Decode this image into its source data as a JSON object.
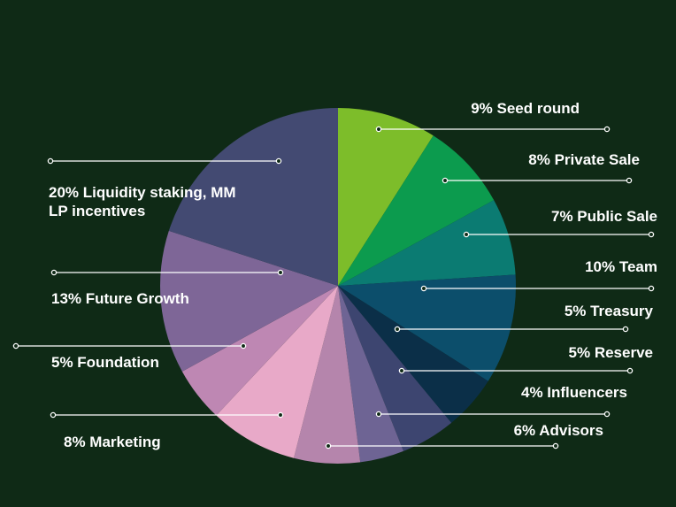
{
  "chart_data": {
    "type": "pie",
    "slices": [
      {
        "label": "9% Seed round",
        "value": 9,
        "color": "#7dbd2a"
      },
      {
        "label": "8% Private Sale",
        "value": 8,
        "color": "#0c9b4e"
      },
      {
        "label": "7% Public Sale",
        "value": 7,
        "color": "#0b7b72"
      },
      {
        "label": "10% Team",
        "value": 10,
        "color": "#0c4e6b"
      },
      {
        "label": "5% Treasury",
        "value": 5,
        "color": "#0b2f48"
      },
      {
        "label": "5% Reserve",
        "value": 5,
        "color": "#3d4570"
      },
      {
        "label": "4% Influencers",
        "value": 4,
        "color": "#6e6494"
      },
      {
        "label": "6% Advisors",
        "value": 6,
        "color": "#b585ac"
      },
      {
        "label": "8% Marketing",
        "value": 8,
        "color": "#e8a9c8"
      },
      {
        "label": "5% Foundation",
        "value": 5,
        "color": "#be87b3"
      },
      {
        "label": "13% Future Growth",
        "value": 13,
        "color": "#7e6697"
      },
      {
        "label": [
          "20% Liquidity staking, MM",
          "LP  incentives"
        ],
        "value": 20,
        "color": "#434a72"
      }
    ]
  }
}
